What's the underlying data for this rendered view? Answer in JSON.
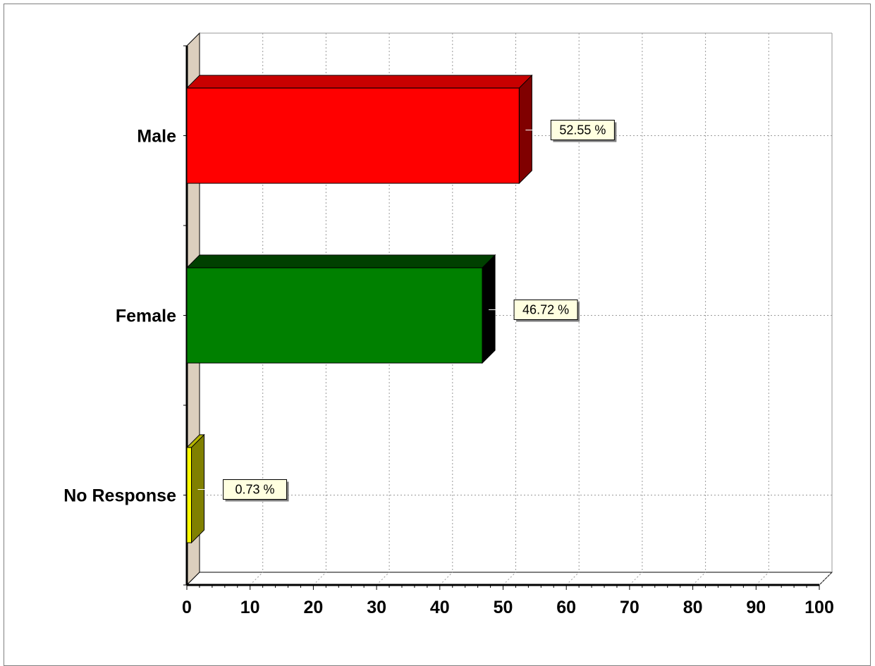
{
  "chart_data": {
    "type": "bar",
    "orientation": "horizontal",
    "three_d": true,
    "categories": [
      "Male",
      "Female",
      "No Response"
    ],
    "values": [
      52.55,
      46.72,
      0.73
    ],
    "data_labels": [
      "52.55 %",
      "46.72 %",
      "0.73 %"
    ],
    "xlim": [
      0,
      100
    ],
    "x_ticks": [
      0,
      10,
      20,
      30,
      40,
      50,
      60,
      70,
      80,
      90,
      100
    ],
    "grid": true,
    "legend": "none",
    "title": "",
    "xlabel": "",
    "ylabel": "",
    "colors": {
      "Male": {
        "front": "#ff0000",
        "top": "#c80000",
        "side": "#800000"
      },
      "Female": {
        "front": "#008000",
        "top": "#004000",
        "side": "#000000"
      },
      "No Response": {
        "front": "#ffff00",
        "top": "#b4b400",
        "side": "#808000"
      }
    },
    "wall_color": "#dccfbe",
    "label_box_color": "#ffffe0"
  }
}
